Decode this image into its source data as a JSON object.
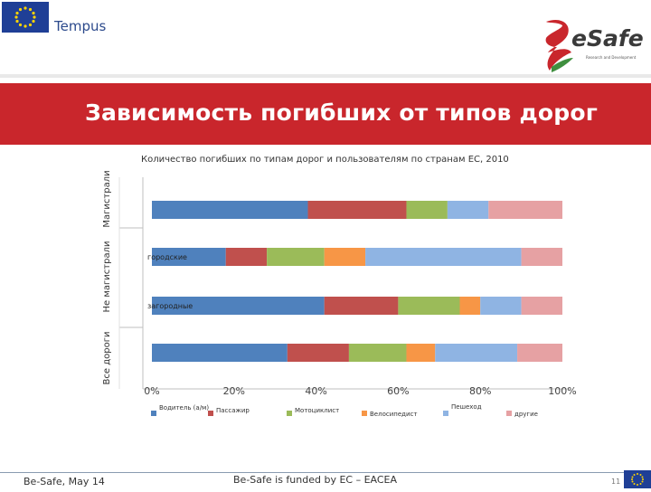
{
  "header": {
    "partner_name": "Tempus",
    "brand_name": "e-Safe",
    "brand_wordmark": "eSafe",
    "brand_tagline": "Research and Development"
  },
  "slide": {
    "title": "Зависимость погибших от типов дорог"
  },
  "chart_data": {
    "type": "bar",
    "orientation": "horizontal",
    "stacked": "percent",
    "title": "Количество погибших по типам дорог и пользователям по странам ЕС, 2010",
    "categories": [
      "Магистрали",
      "городские",
      "загородные",
      "Все дороги"
    ],
    "group_labels": [
      "Магистрали",
      "Не магистрали",
      "Все дороги"
    ],
    "series": [
      {
        "name": "Водитель (а/м)",
        "color": "#4f81bd",
        "values": [
          38,
          18,
          42,
          33
        ]
      },
      {
        "name": "Пассажир",
        "color": "#c0504d",
        "values": [
          24,
          10,
          18,
          15
        ]
      },
      {
        "name": "Мотоциклист",
        "color": "#9bbb59",
        "values": [
          10,
          14,
          15,
          14
        ]
      },
      {
        "name": "Велосипедист",
        "color": "#f79646",
        "values": [
          0,
          10,
          5,
          7
        ]
      },
      {
        "name": "Пешеход",
        "color": "#8fb4e3",
        "values": [
          10,
          38,
          10,
          20
        ]
      },
      {
        "name": "другие",
        "color": "#e6a1a3",
        "values": [
          18,
          10,
          10,
          11
        ]
      }
    ],
    "xlim": [
      0,
      100
    ],
    "x_ticks": [
      "0%",
      "20%",
      "40%",
      "60%",
      "80%",
      "100%"
    ],
    "grid": false,
    "legend_position": "bottom"
  },
  "footer": {
    "left": "Be-Safe, May 14",
    "center": "Be-Safe is funded by EC – EACEA",
    "page": "11"
  }
}
